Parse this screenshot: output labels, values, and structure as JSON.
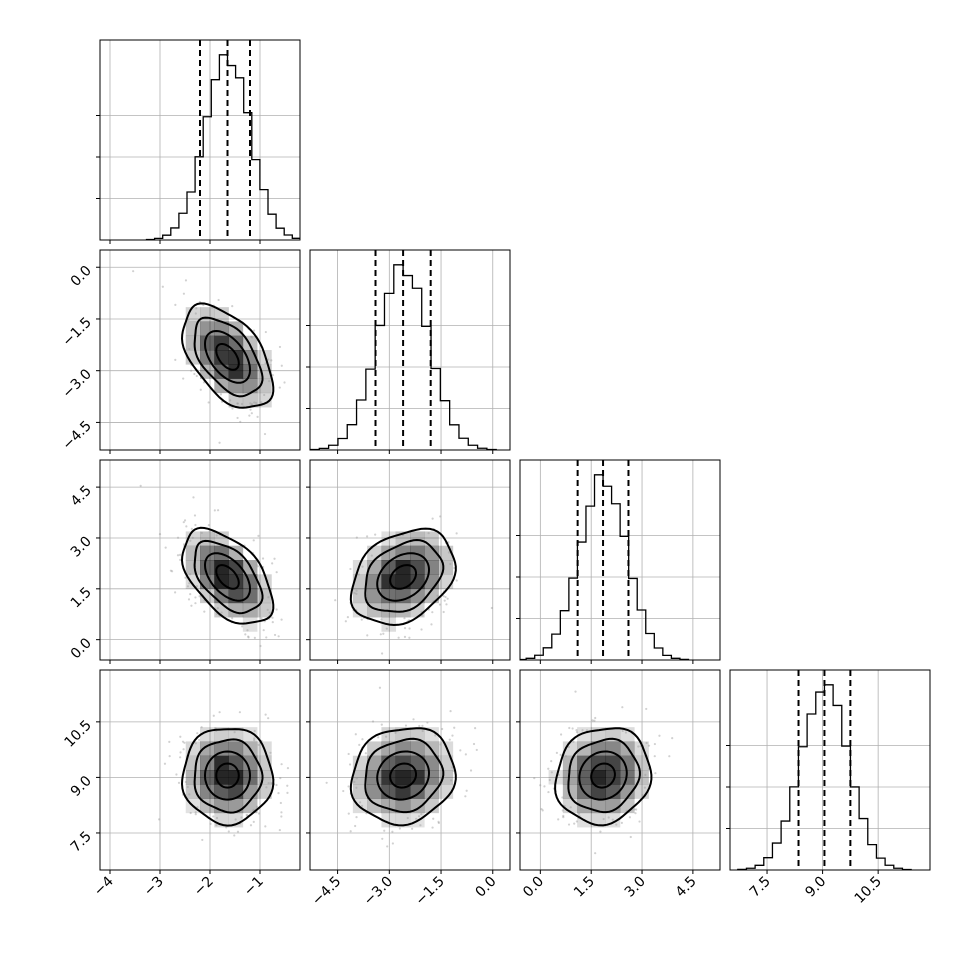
{
  "chart_data": {
    "type": "corner",
    "grid": true,
    "colors": {
      "hist": "#000000",
      "contour": "#000000",
      "scatter": "#9a9a9a",
      "density": "#000000"
    },
    "parameters": [
      {
        "mean": -1.65,
        "std": 0.45,
        "quantiles": [
          -2.2,
          -1.65,
          -1.2
        ],
        "xlim": [
          -4.2,
          -0.2
        ],
        "ticks": [
          -4,
          -3,
          -2,
          -1
        ],
        "tick_labels": [
          "−4",
          "−3",
          "−2",
          "−1"
        ]
      },
      {
        "mean": -2.6,
        "std": 0.75,
        "quantiles": [
          -3.4,
          -2.6,
          -1.8
        ],
        "xlim": [
          -5.3,
          0.5
        ],
        "ticks": [
          -4.5,
          -3.0,
          -1.5,
          0.0
        ],
        "tick_labels": [
          "−4.5",
          "−3.0",
          "−1.5",
          "0.0"
        ]
      },
      {
        "mean": 1.85,
        "std": 0.7,
        "quantiles": [
          1.1,
          1.85,
          2.6
        ],
        "xlim": [
          -0.6,
          5.3
        ],
        "ticks": [
          0.0,
          1.5,
          3.0,
          4.5
        ],
        "tick_labels": [
          "0.0",
          "1.5",
          "3.0",
          "4.5"
        ]
      },
      {
        "mean": 9.05,
        "std": 0.65,
        "quantiles": [
          8.35,
          9.05,
          9.75
        ],
        "xlim": [
          6.5,
          11.9
        ],
        "ticks": [
          7.5,
          9.0,
          10.5
        ],
        "tick_labels": [
          "7.5",
          "9.0",
          "10.5"
        ]
      }
    ],
    "correlations": [
      [
        1,
        -0.5,
        -0.5,
        0.0
      ],
      [
        -0.5,
        1,
        0.3,
        0.1
      ],
      [
        -0.5,
        0.3,
        1,
        0.1
      ],
      [
        0.0,
        0.1,
        0.1,
        1
      ]
    ],
    "contour_levels_sigma": [
      0.5,
      1.0,
      1.5,
      2.0
    ]
  }
}
